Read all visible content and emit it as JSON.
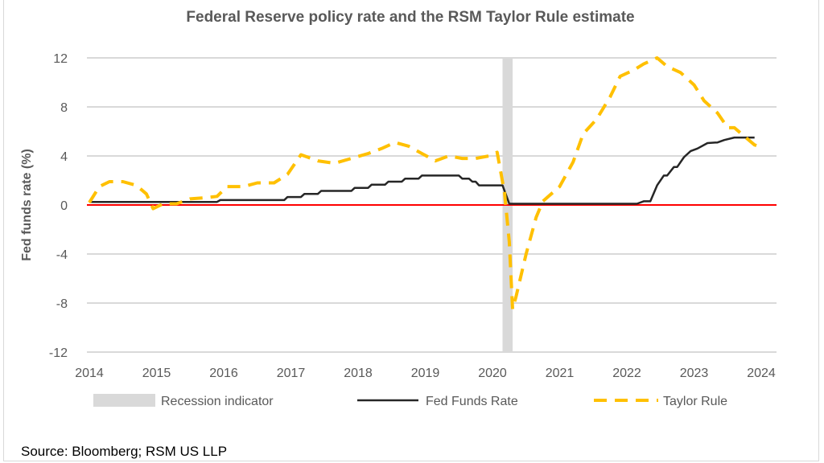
{
  "chart_data": {
    "type": "line",
    "title": "Federal Reserve  policy rate and the RSM Taylor Rule estimate",
    "xlabel": "",
    "ylabel": "Fed funds rate (%)",
    "xlim": [
      2014,
      2024
    ],
    "ylim": [
      -12,
      12
    ],
    "x_ticks": [
      "2014",
      "2015",
      "2016",
      "2017",
      "2018",
      "2019",
      "2020",
      "2021",
      "2022",
      "2023",
      "2024"
    ],
    "y_ticks": [
      "-12",
      "-8",
      "-4",
      "0",
      "4",
      "8",
      "12"
    ],
    "grid": "horizontal",
    "legend_position": "bottom",
    "reference_line": {
      "y": 0,
      "color": "#ff0000"
    },
    "recession": {
      "name": "Recession indicator",
      "start": 2020.15,
      "end": 2020.3,
      "color": "#d9d9d9"
    },
    "series": [
      {
        "name": "Fed Funds Rate",
        "color": "#262626",
        "style": "solid",
        "points": [
          [
            2014.0,
            0.25
          ],
          [
            2015.9,
            0.25
          ],
          [
            2015.95,
            0.4
          ],
          [
            2016.9,
            0.4
          ],
          [
            2016.95,
            0.65
          ],
          [
            2017.15,
            0.65
          ],
          [
            2017.2,
            0.9
          ],
          [
            2017.4,
            0.9
          ],
          [
            2017.45,
            1.15
          ],
          [
            2017.9,
            1.15
          ],
          [
            2017.95,
            1.4
          ],
          [
            2018.15,
            1.4
          ],
          [
            2018.2,
            1.65
          ],
          [
            2018.4,
            1.65
          ],
          [
            2018.45,
            1.9
          ],
          [
            2018.65,
            1.9
          ],
          [
            2018.7,
            2.15
          ],
          [
            2018.9,
            2.15
          ],
          [
            2018.95,
            2.4
          ],
          [
            2019.5,
            2.4
          ],
          [
            2019.55,
            2.15
          ],
          [
            2019.65,
            2.15
          ],
          [
            2019.7,
            1.9
          ],
          [
            2019.75,
            1.9
          ],
          [
            2019.8,
            1.6
          ],
          [
            2020.15,
            1.6
          ],
          [
            2020.25,
            0.1
          ],
          [
            2022.15,
            0.1
          ],
          [
            2022.25,
            0.3
          ],
          [
            2022.35,
            0.3
          ],
          [
            2022.45,
            1.6
          ],
          [
            2022.55,
            2.4
          ],
          [
            2022.6,
            2.4
          ],
          [
            2022.7,
            3.1
          ],
          [
            2022.75,
            3.1
          ],
          [
            2022.85,
            3.9
          ],
          [
            2022.95,
            4.4
          ],
          [
            2023.05,
            4.6
          ],
          [
            2023.2,
            5.05
          ],
          [
            2023.35,
            5.1
          ],
          [
            2023.45,
            5.3
          ],
          [
            2023.6,
            5.5
          ],
          [
            2023.9,
            5.5
          ]
        ]
      },
      {
        "name": "Taylor Rule",
        "color": "#ffc000",
        "style": "dashed",
        "points": [
          [
            2014.0,
            0.2
          ],
          [
            2014.15,
            1.5
          ],
          [
            2014.3,
            1.9
          ],
          [
            2014.5,
            1.9
          ],
          [
            2014.7,
            1.6
          ],
          [
            2014.85,
            0.9
          ],
          [
            2014.95,
            -0.3
          ],
          [
            2015.1,
            0.1
          ],
          [
            2015.3,
            0.1
          ],
          [
            2015.5,
            0.5
          ],
          [
            2015.75,
            0.6
          ],
          [
            2015.9,
            0.7
          ],
          [
            2016.05,
            1.5
          ],
          [
            2016.3,
            1.5
          ],
          [
            2016.5,
            1.8
          ],
          [
            2016.75,
            1.8
          ],
          [
            2016.95,
            2.5
          ],
          [
            2017.15,
            4.1
          ],
          [
            2017.4,
            3.6
          ],
          [
            2017.65,
            3.4
          ],
          [
            2017.9,
            3.8
          ],
          [
            2018.15,
            4.2
          ],
          [
            2018.35,
            4.6
          ],
          [
            2018.55,
            5.1
          ],
          [
            2018.75,
            4.8
          ],
          [
            2018.95,
            4.2
          ],
          [
            2019.15,
            3.6
          ],
          [
            2019.35,
            4.0
          ],
          [
            2019.55,
            3.8
          ],
          [
            2019.75,
            3.8
          ],
          [
            2019.95,
            4.0
          ],
          [
            2020.07,
            4.3
          ],
          [
            2020.18,
            1.0
          ],
          [
            2020.25,
            -3
          ],
          [
            2020.3,
            -8.5
          ],
          [
            2020.35,
            -7.5
          ],
          [
            2020.5,
            -4
          ],
          [
            2020.65,
            -1
          ],
          [
            2020.75,
            0.3
          ],
          [
            2021.0,
            1.5
          ],
          [
            2021.2,
            3.5
          ],
          [
            2021.35,
            5.8
          ],
          [
            2021.55,
            7.0
          ],
          [
            2021.75,
            8.8
          ],
          [
            2021.9,
            10.5
          ],
          [
            2022.1,
            11.0
          ],
          [
            2022.25,
            11.5
          ],
          [
            2022.45,
            12.0
          ],
          [
            2022.6,
            11.3
          ],
          [
            2022.8,
            10.8
          ],
          [
            2023.0,
            9.8
          ],
          [
            2023.15,
            8.5
          ],
          [
            2023.35,
            7.5
          ],
          [
            2023.5,
            6.3
          ],
          [
            2023.6,
            6.3
          ],
          [
            2023.75,
            5.6
          ],
          [
            2023.9,
            4.9
          ],
          [
            2023.95,
            4.8
          ]
        ]
      }
    ],
    "legend": [
      "Recession indicator",
      "Fed Funds Rate",
      "Taylor Rule"
    ]
  },
  "source": "Source: Bloomberg; RSM US LLP"
}
